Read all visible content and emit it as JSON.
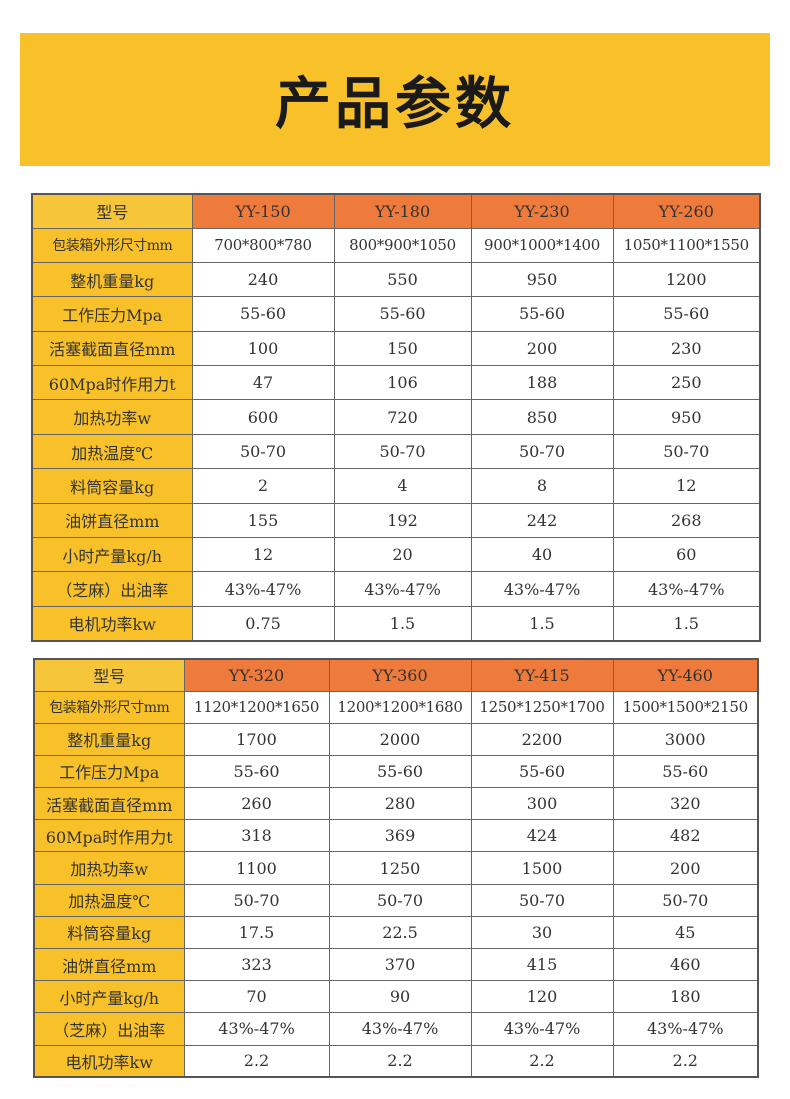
{
  "banner": {
    "title": "产品参数"
  },
  "row_labels": [
    "包装箱外形尺寸mm",
    "整机重量kg",
    "工作压力Mpa",
    "活塞截面直径mm",
    "60Mpa时作用力t",
    "加热功率w",
    "加热温度℃",
    "料筒容量kg",
    "油饼直径mm",
    "小时产量kg/h",
    "（芝麻）出油率",
    "电机功率kw"
  ],
  "tables": [
    {
      "header": [
        "型号",
        "YY-150",
        "YY-180",
        "YY-230",
        "YY-260"
      ],
      "rows": [
        [
          "700*800*780",
          "800*900*1050",
          "900*1000*1400",
          "1050*1100*1550"
        ],
        [
          "240",
          "550",
          "950",
          "1200"
        ],
        [
          "55-60",
          "55-60",
          "55-60",
          "55-60"
        ],
        [
          "100",
          "150",
          "200",
          "230"
        ],
        [
          "47",
          "106",
          "188",
          "250"
        ],
        [
          "600",
          "720",
          "850",
          "950"
        ],
        [
          "50-70",
          "50-70",
          "50-70",
          "50-70"
        ],
        [
          "2",
          "4",
          "8",
          "12"
        ],
        [
          "155",
          "192",
          "242",
          "268"
        ],
        [
          "12",
          "20",
          "40",
          "60"
        ],
        [
          "43%-47%",
          "43%-47%",
          "43%-47%",
          "43%-47%"
        ],
        [
          "0.75",
          "1.5",
          "1.5",
          "1.5"
        ]
      ]
    },
    {
      "header": [
        "型号",
        "YY-320",
        "YY-360",
        "YY-415",
        "YY-460"
      ],
      "rows": [
        [
          "1120*1200*1650",
          "1200*1200*1680",
          "1250*1250*1700",
          "1500*1500*2150"
        ],
        [
          "1700",
          "2000",
          "2200",
          "3000"
        ],
        [
          "55-60",
          "55-60",
          "55-60",
          "55-60"
        ],
        [
          "260",
          "280",
          "300",
          "320"
        ],
        [
          "318",
          "369",
          "424",
          "482"
        ],
        [
          "1100",
          "1250",
          "1500",
          "200"
        ],
        [
          "50-70",
          "50-70",
          "50-70",
          "50-70"
        ],
        [
          "17.5",
          "22.5",
          "30",
          "45"
        ],
        [
          "323",
          "370",
          "415",
          "460"
        ],
        [
          "70",
          "90",
          "120",
          "180"
        ],
        [
          "43%-47%",
          "43%-47%",
          "43%-47%",
          "43%-47%"
        ],
        [
          "2.2",
          "2.2",
          "2.2",
          "2.2"
        ]
      ]
    }
  ],
  "colors": {
    "banner": "#f8c12a",
    "label_cell": "#f8c12a",
    "header_model": "#ee7a3b"
  }
}
